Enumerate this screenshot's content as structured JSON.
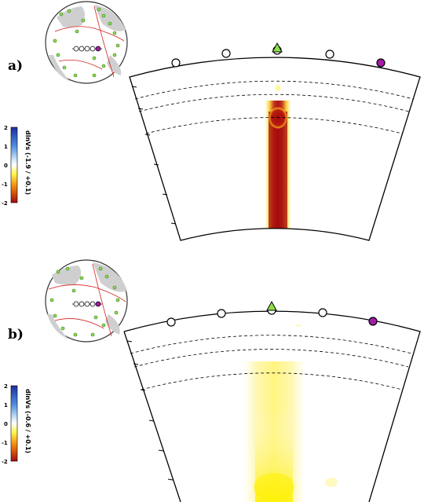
{
  "panels": [
    {
      "label": "a)",
      "colorbar": {
        "title": "dlnVs (-1.9 / +0.1)",
        "ticks": [
          "2",
          "1",
          "0",
          "-1",
          "-2"
        ],
        "range": [
          -2,
          2
        ]
      },
      "anomaly": {
        "min": -1.9,
        "max": 0.1
      },
      "stations": [
        "open",
        "open",
        "triangle",
        "open",
        "purple"
      ]
    },
    {
      "label": "b)",
      "colorbar": {
        "title": "dlnVs (-0.6 / +0.1)",
        "ticks": [
          "2",
          "1",
          "0",
          "-1",
          "-2"
        ],
        "range": [
          -2,
          2
        ]
      },
      "anomaly": {
        "min": -0.6,
        "max": 0.1
      },
      "stations": [
        "open",
        "open",
        "triangle",
        "open",
        "purple"
      ]
    }
  ],
  "colors": {
    "positive": "#1a2f9e",
    "negative": "#a30b0b",
    "anomaly_weak": "#fff54a",
    "station_marker": "#a21ca7",
    "source_marker": "#8fe04a",
    "plate_boundary": "#d62020"
  }
}
